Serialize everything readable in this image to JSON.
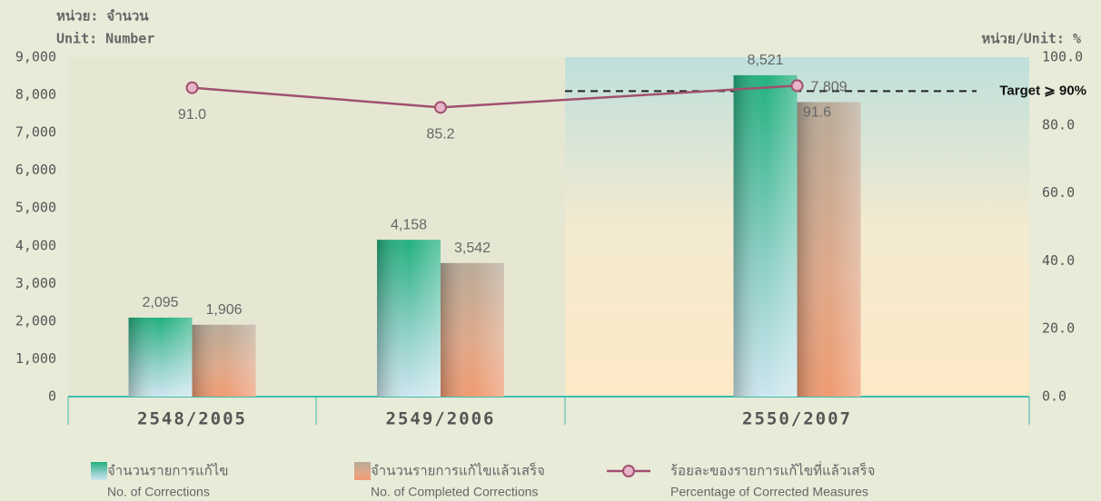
{
  "chart_data": {
    "type": "bar",
    "unit_left_th": "หน่วย: จำนวน",
    "unit_left_en": "Unit: Number",
    "unit_right": "หน่วย/Unit: %",
    "categories": [
      "2548/2005",
      "2549/2006",
      "2550/2007"
    ],
    "series": [
      {
        "name": "จำนวนรายการแก้ไข",
        "name_en": "No. of Corrections",
        "color": "#2fb58c",
        "type": "bar",
        "values": [
          2095,
          4158,
          8521
        ],
        "value_labels": [
          "2,095",
          "4,158",
          "8,521"
        ]
      },
      {
        "name": "จำนวนรายการแก้ไขแล้วเสร็จ",
        "name_en": "No. of Completed Corrections",
        "color": "#e89a7a",
        "type": "bar",
        "values": [
          1906,
          3542,
          7809
        ],
        "value_labels": [
          "1,906",
          "3,542",
          "7,809"
        ]
      },
      {
        "name": "ร้อยละของรายการแก้ไขที่แล้วเสร็จ",
        "name_en": "Percentage of Corrected Measures",
        "color": "#a0506e",
        "type": "line",
        "axis": "y2",
        "values": [
          91.0,
          85.2,
          91.6
        ],
        "value_labels": [
          "91.0",
          "85.2",
          "91.6"
        ]
      }
    ],
    "target": {
      "value": 90,
      "label": "Target ⩾ 90%"
    },
    "ylim": [
      0,
      9000
    ],
    "yticks": [
      0,
      {
        "value": 1000,
        "label": "1,000"
      },
      {
        "value": 2000,
        "label": "2,000"
      },
      {
        "value": 3000,
        "label": "3,000"
      },
      {
        "value": 4000,
        "label": "4,000"
      },
      {
        "value": 5000,
        "label": "5,000"
      },
      {
        "value": 6000,
        "label": "6,000"
      },
      {
        "value": 7000,
        "label": "7,000"
      },
      {
        "value": 8000,
        "label": "8,000"
      },
      {
        "value": 9000,
        "label": "9,000"
      }
    ],
    "y2lim": [
      0,
      100
    ],
    "y2ticks": [
      {
        "value": 0,
        "label": "0.0"
      },
      {
        "value": 20,
        "label": "20.0"
      },
      {
        "value": 40,
        "label": "40.0"
      },
      {
        "value": 60,
        "label": "60.0"
      },
      {
        "value": 80,
        "label": "80.0"
      },
      {
        "value": 100,
        "label": "100.0"
      }
    ]
  }
}
